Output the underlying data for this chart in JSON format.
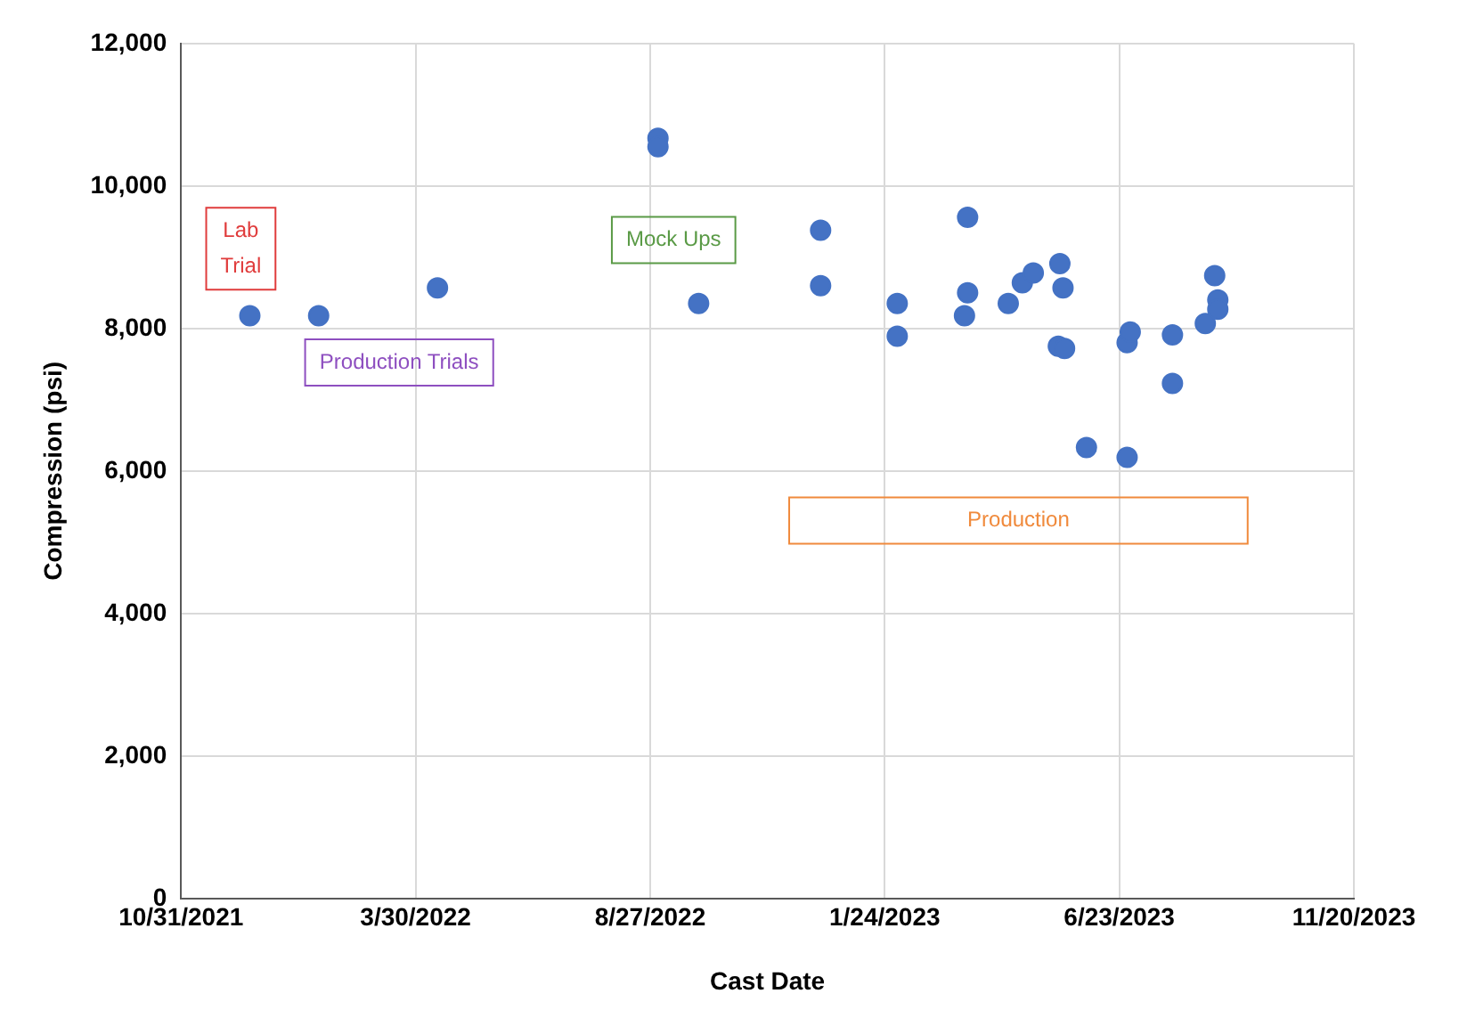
{
  "chart_data": {
    "type": "scatter",
    "xlabel": "Cast Date",
    "ylabel": "Compression (psi)",
    "x": [
      "2021-12-14",
      "2022-01-27",
      "2022-04-13",
      "2022-09-01",
      "2022-09-01",
      "2022-09-27",
      "2022-12-14",
      "2022-12-14",
      "2023-02-01",
      "2023-02-01",
      "2023-03-18",
      "2023-03-18",
      "2023-03-16",
      "2023-04-13",
      "2023-04-22",
      "2023-04-29",
      "2023-05-16",
      "2023-05-18",
      "2023-05-15",
      "2023-05-19",
      "2023-06-02",
      "2023-06-28",
      "2023-06-28",
      "2023-06-30",
      "2023-07-27",
      "2023-07-27",
      "2023-08-17",
      "2023-08-23",
      "2023-08-25",
      "2023-08-25"
    ],
    "values": [
      8180,
      8180,
      8570,
      10670,
      10550,
      8350,
      9380,
      8600,
      8350,
      7890,
      9560,
      8500,
      8180,
      8350,
      8640,
      8780,
      8910,
      8570,
      7750,
      7720,
      6330,
      6190,
      7800,
      7950,
      7910,
      7230,
      8070,
      8740,
      8400,
      8270
    ],
    "color": "#4472c4",
    "marker": "circle",
    "grid": true,
    "legend": false,
    "xlim": [
      "2021-10-31",
      "2023-11-20"
    ],
    "xticks": [
      {
        "value": "2021-10-31",
        "label": "10/31/2021"
      },
      {
        "value": "2022-03-30",
        "label": "3/30/2022"
      },
      {
        "value": "2022-08-27",
        "label": "8/27/2022"
      },
      {
        "value": "2023-01-24",
        "label": "1/24/2023"
      },
      {
        "value": "2023-06-23",
        "label": "6/23/2023"
      },
      {
        "value": "2023-11-20",
        "label": "11/20/2023"
      }
    ],
    "ylim": [
      0,
      12000
    ],
    "yticks": [
      {
        "value": 0,
        "label": "0"
      },
      {
        "value": 2000,
        "label": "2,000"
      },
      {
        "value": 4000,
        "label": "4,000"
      },
      {
        "value": 6000,
        "label": "6,000"
      },
      {
        "value": 8000,
        "label": "8,000"
      },
      {
        "value": 10000,
        "label": "10,000"
      },
      {
        "value": 12000,
        "label": "12,000"
      }
    ],
    "annotations": [
      "Lab\nTrial",
      "Production Trials",
      "Mock Ups",
      "Production"
    ]
  }
}
